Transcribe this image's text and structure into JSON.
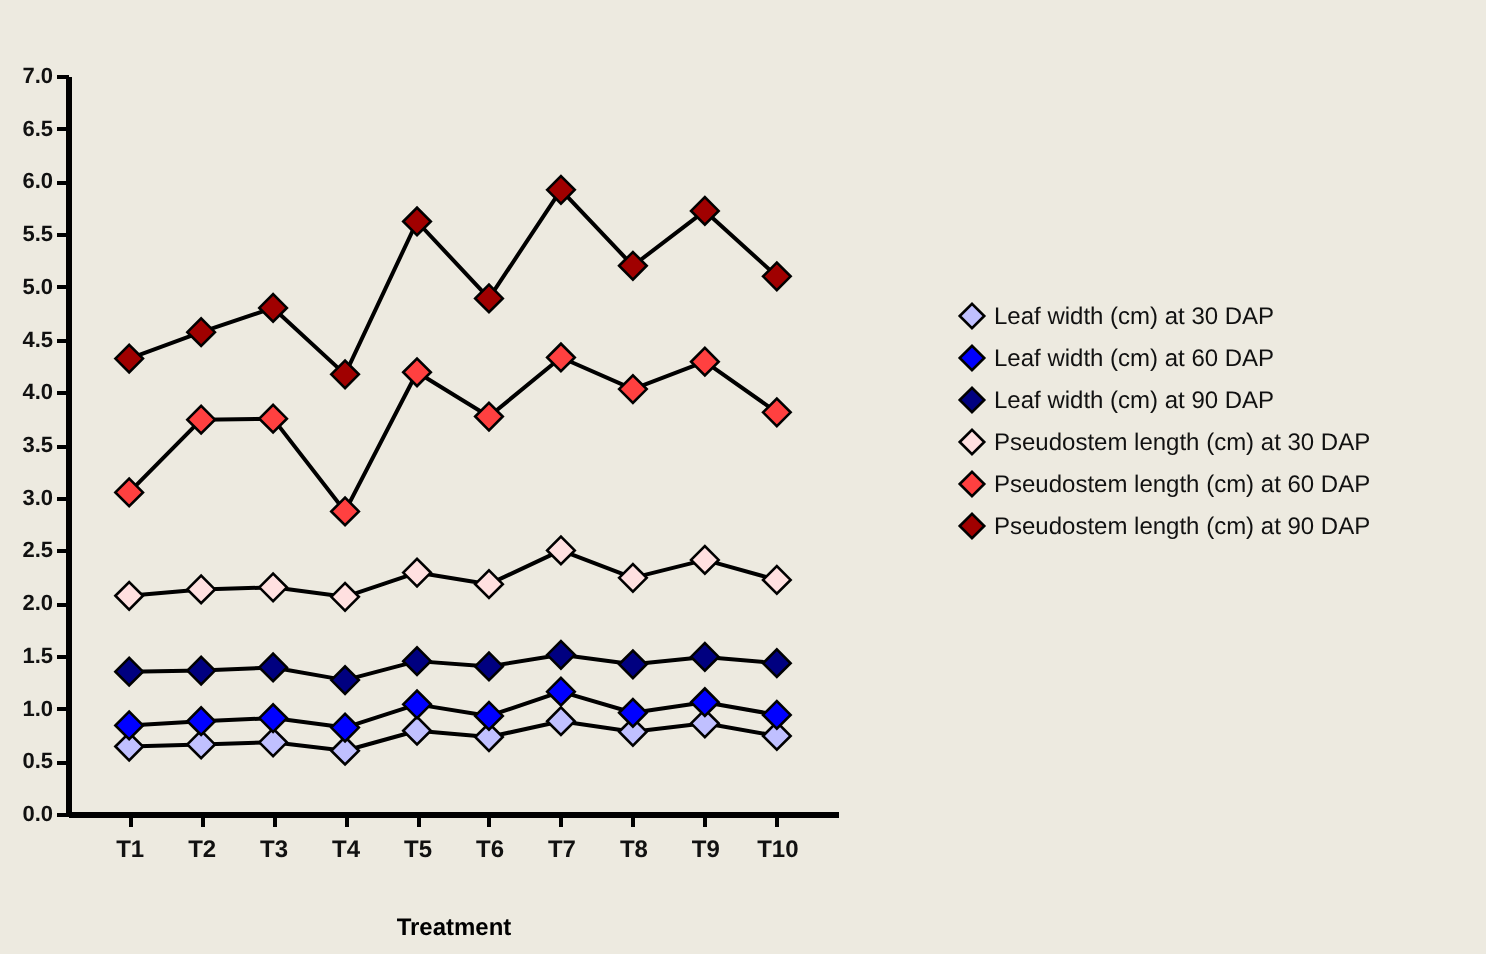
{
  "chart_data": {
    "type": "line",
    "xlabel": "Treatment",
    "categories": [
      "T1",
      "T2",
      "T3",
      "T4",
      "T5",
      "T6",
      "T7",
      "T8",
      "T9",
      "T10"
    ],
    "series": [
      {
        "name": "Leaf width (cm) at 30 DAP",
        "color": "#c0c0ff",
        "values": [
          0.64,
          0.66,
          0.68,
          0.6,
          0.79,
          0.73,
          0.88,
          0.78,
          0.86,
          0.74
        ]
      },
      {
        "name": "Leaf width (cm) at 60 DAP",
        "color": "#0000ff",
        "values": [
          0.84,
          0.88,
          0.91,
          0.82,
          1.04,
          0.93,
          1.16,
          0.96,
          1.06,
          0.94
        ]
      },
      {
        "name": "Leaf width (cm) at 90 DAP",
        "color": "#000080",
        "values": [
          1.35,
          1.36,
          1.39,
          1.27,
          1.45,
          1.4,
          1.51,
          1.42,
          1.49,
          1.43
        ]
      },
      {
        "name": "Pseudostem length (cm) at 30 DAP",
        "color": "#ffe0e0",
        "values": [
          2.07,
          2.13,
          2.15,
          2.06,
          2.29,
          2.18,
          2.5,
          2.24,
          2.41,
          2.22
        ]
      },
      {
        "name": "Pseudostem length (cm) at 60 DAP",
        "color": "#ff4040",
        "values": [
          3.05,
          3.74,
          3.75,
          2.87,
          4.19,
          3.77,
          4.33,
          4.03,
          4.29,
          3.81
        ]
      },
      {
        "name": "Pseudostem length (cm) at 90 DAP",
        "color": "#a00000",
        "values": [
          4.32,
          4.57,
          4.8,
          4.17,
          5.62,
          4.89,
          5.92,
          5.2,
          5.72,
          5.1
        ]
      }
    ],
    "ylim": [
      0,
      7
    ],
    "yticks": [
      {
        "value": 0,
        "label": "0.0"
      },
      {
        "value": 0.5,
        "label": "0.5"
      },
      {
        "value": 1,
        "label": "1.0"
      },
      {
        "value": 1.5,
        "label": "1.5"
      },
      {
        "value": 2,
        "label": "2.0"
      },
      {
        "value": 2.5,
        "label": "2.5"
      },
      {
        "value": 3,
        "label": "3.0"
      },
      {
        "value": 3.5,
        "label": "3.5"
      },
      {
        "value": 4,
        "label": "4.0"
      },
      {
        "value": 4.5,
        "label": "4.5"
      },
      {
        "value": 5,
        "label": "5.0"
      },
      {
        "value": 5.5,
        "label": "5.5"
      },
      {
        "value": 6,
        "label": "6.0"
      },
      {
        "value": 6.5,
        "label": "6.5"
      },
      {
        "value": 7,
        "label": "7.0"
      }
    ],
    "grid": false,
    "legend": "right",
    "marker": "diamond",
    "line_style": "solid"
  }
}
